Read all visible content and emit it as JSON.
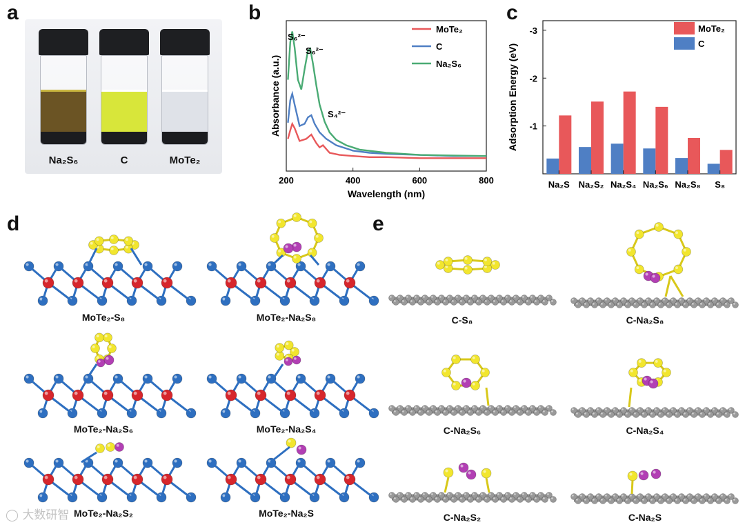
{
  "panels": {
    "a": {
      "letter": "a",
      "vials": [
        {
          "label": "Na₂S₆",
          "liquid_color": "#6b5424",
          "band_color": "#c9b640"
        },
        {
          "label": "C",
          "liquid_color": "#d8e63a",
          "band_color": "#ffffff"
        },
        {
          "label": "MoTe₂",
          "liquid_color": "#dfe2e8",
          "band_color": "#ffffff"
        }
      ]
    },
    "b": {
      "letter": "b"
    },
    "c": {
      "letter": "c"
    },
    "d": {
      "letter": "d",
      "labels": [
        "MoTe₂-S₈",
        "MoTe₂-Na₂S₈",
        "MoTe₂-Na₂S₆",
        "MoTe₂-Na₂S₄",
        "MoTe₂-Na₂S₂",
        "MoTe₂-Na₂S"
      ]
    },
    "e": {
      "letter": "e",
      "labels": [
        "C-S₈",
        "C-Na₂S₈",
        "C-Na₂S₆",
        "C-Na₂S₄",
        "C-Na₂S₂",
        "C-Na₂S"
      ]
    }
  },
  "watermark": "大数研智",
  "colors": {
    "mote2": "#e8585a",
    "c": "#4f7fc4",
    "na2s6": "#4aab74",
    "mo_atom": "#d6262c",
    "te_atom": "#2e6fc0",
    "s_atom": "#f2e62e",
    "na_atom": "#b23fb4",
    "c_atom": "#9a9a9a"
  },
  "chart_data": [
    {
      "type": "line",
      "xlabel": "Wavelength (nm)",
      "ylabel": "Absorbance (a.u.)",
      "xlim": [
        200,
        800
      ],
      "xticks": [
        200,
        400,
        600,
        800
      ],
      "yticks_shown": false,
      "annotations": [
        "S₆²⁻",
        "S₆²⁻",
        "S₄²⁻"
      ],
      "legend_position": "top-right",
      "series": [
        {
          "name": "MoTe₂",
          "x": [
            205,
            212,
            218,
            225,
            240,
            260,
            275,
            290,
            300,
            310,
            330,
            360,
            400,
            450,
            500,
            600,
            700,
            800
          ],
          "y": [
            0.3,
            0.38,
            0.44,
            0.4,
            0.28,
            0.3,
            0.34,
            0.26,
            0.22,
            0.24,
            0.17,
            0.15,
            0.14,
            0.13,
            0.13,
            0.12,
            0.12,
            0.12
          ]
        },
        {
          "name": "C",
          "x": [
            205,
            212,
            218,
            225,
            240,
            255,
            265,
            275,
            285,
            300,
            320,
            350,
            400,
            450,
            500,
            600,
            700,
            800
          ],
          "y": [
            0.45,
            0.66,
            0.72,
            0.62,
            0.42,
            0.44,
            0.5,
            0.52,
            0.44,
            0.36,
            0.3,
            0.24,
            0.19,
            0.17,
            0.16,
            0.15,
            0.14,
            0.14
          ]
        },
        {
          "name": "Na₂S₆",
          "x": [
            205,
            212,
            218,
            225,
            235,
            245,
            255,
            265,
            272,
            280,
            290,
            300,
            315,
            330,
            350,
            380,
            420,
            500,
            600,
            700,
            800
          ],
          "y": [
            0.85,
            1.2,
            1.3,
            1.15,
            0.85,
            0.76,
            0.95,
            1.12,
            1.14,
            1.0,
            0.8,
            0.62,
            0.46,
            0.36,
            0.29,
            0.24,
            0.2,
            0.17,
            0.15,
            0.145,
            0.14
          ]
        }
      ]
    },
    {
      "type": "bar",
      "ylabel": "Adsorption Energy (eV)",
      "ylim": [
        0,
        -3
      ],
      "yticks": [
        -1,
        -2,
        -3
      ],
      "categories": [
        "Na₂S",
        "Na₂S₂",
        "Na₂S₄",
        "Na₂S₆",
        "Na₂S₈",
        "S₈"
      ],
      "legend_position": "top-right",
      "series": [
        {
          "name": "MoTe₂",
          "values": [
            -1.22,
            -1.51,
            -1.72,
            -1.4,
            -0.75,
            -0.5
          ]
        },
        {
          "name": "C",
          "values": [
            -0.32,
            -0.56,
            -0.63,
            -0.53,
            -0.33,
            -0.21
          ]
        }
      ]
    }
  ]
}
